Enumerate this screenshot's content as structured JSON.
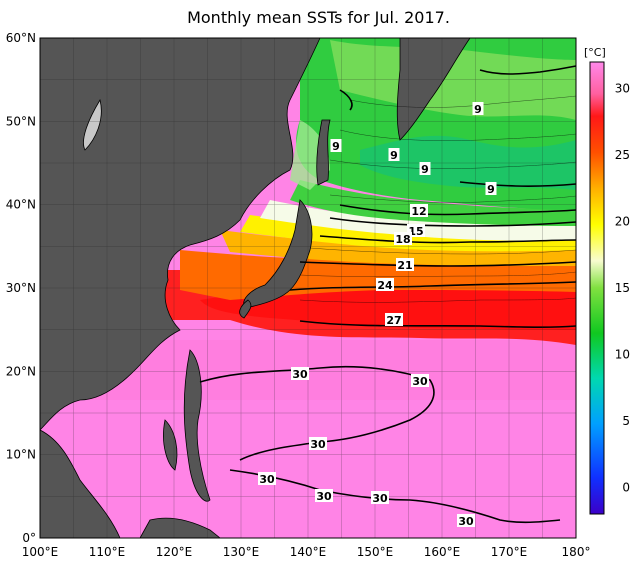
{
  "title": "Monthly mean SSTs for Jul. 2017.",
  "axes": {
    "lat_labels": [
      "60°N",
      "50°N",
      "40°N",
      "30°N",
      "20°N",
      "10°N",
      "0°"
    ],
    "lon_labels": [
      "100°E",
      "110°E",
      "120°E",
      "130°E",
      "140°E",
      "150°E",
      "160°E",
      "170°E",
      "180°"
    ],
    "lat_range": [
      0,
      60
    ],
    "lon_range": [
      100,
      180
    ]
  },
  "colorbar": {
    "unit": "[°C]",
    "ticks": [
      "30",
      "25",
      "20",
      "15",
      "10",
      "5",
      "0"
    ],
    "range": [
      -2,
      32
    ],
    "colors": [
      "#3b00c8",
      "#1030ff",
      "#00a0ff",
      "#00e0a0",
      "#20d020",
      "#a0e030",
      "#ffff00",
      "#ffb000",
      "#ff5000",
      "#ff1a1a",
      "#ff60a0",
      "#ff88e8"
    ]
  },
  "contour_labels": [
    {
      "text": "9"
    },
    {
      "text": "9"
    },
    {
      "text": "9"
    },
    {
      "text": "9"
    },
    {
      "text": "9"
    },
    {
      "text": "12"
    },
    {
      "text": "15"
    },
    {
      "text": "18"
    },
    {
      "text": "21"
    },
    {
      "text": "24"
    },
    {
      "text": "27"
    },
    {
      "text": "30"
    },
    {
      "text": "30"
    },
    {
      "text": "30"
    },
    {
      "text": "30"
    },
    {
      "text": "30"
    },
    {
      "text": "30"
    },
    {
      "text": "30"
    }
  ],
  "colors": {
    "land": "#555555",
    "frame": "#000000",
    "warm_pool": "#ff80e8",
    "kuroshio": "#ff2a2a"
  }
}
